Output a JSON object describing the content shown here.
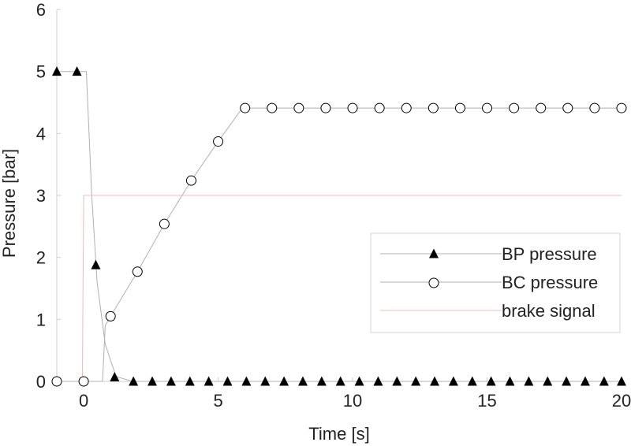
{
  "chart_data": {
    "type": "line",
    "title": "",
    "xlabel": "Time [s]",
    "ylabel": "Pressure [bar]",
    "xlim": [
      -1,
      20
    ],
    "ylim": [
      0,
      6
    ],
    "x_ticks": [
      0,
      5,
      10,
      15,
      20
    ],
    "y_ticks": [
      0,
      1,
      2,
      3,
      4,
      5,
      6
    ],
    "grid": false,
    "legend_position": "center-right",
    "series": [
      {
        "name": "BP pressure",
        "marker": "filled-triangle",
        "color": "#000000",
        "line_color": "#b0b0b0",
        "line": [
          [
            -1,
            5
          ],
          [
            0.1,
            5
          ],
          [
            0.3,
            3.0
          ],
          [
            0.5,
            1.6
          ],
          [
            0.8,
            0.6
          ],
          [
            1.2,
            0.08
          ],
          [
            1.8,
            0.0
          ],
          [
            20,
            0.0
          ]
        ],
        "points": [
          [
            -1,
            5
          ],
          [
            -0.25,
            5
          ],
          [
            0.45,
            1.88
          ],
          [
            1.15,
            0.07
          ],
          [
            1.85,
            0
          ],
          [
            2.55,
            0
          ],
          [
            3.25,
            0
          ],
          [
            3.95,
            0
          ],
          [
            4.65,
            0
          ],
          [
            5.35,
            0
          ],
          [
            6.05,
            0
          ],
          [
            6.75,
            0
          ],
          [
            7.45,
            0
          ],
          [
            8.15,
            0
          ],
          [
            8.85,
            0
          ],
          [
            9.55,
            0
          ],
          [
            10.25,
            0
          ],
          [
            10.95,
            0
          ],
          [
            11.65,
            0
          ],
          [
            12.35,
            0
          ],
          [
            13.05,
            0
          ],
          [
            13.75,
            0
          ],
          [
            14.45,
            0
          ],
          [
            15.15,
            0
          ],
          [
            15.85,
            0
          ],
          [
            16.55,
            0
          ],
          [
            17.25,
            0
          ],
          [
            17.95,
            0
          ],
          [
            18.65,
            0
          ],
          [
            19.35,
            0
          ],
          [
            20,
            0
          ]
        ]
      },
      {
        "name": "BC pressure",
        "marker": "open-circle",
        "color": "#000000",
        "line_color": "#b0b0b0",
        "line": [
          [
            -1,
            0
          ],
          [
            0.7,
            0
          ],
          [
            0.8,
            0.9
          ],
          [
            1.0,
            1.05
          ],
          [
            2.0,
            1.77
          ],
          [
            3.0,
            2.54
          ],
          [
            4.0,
            3.24
          ],
          [
            5.0,
            3.87
          ],
          [
            5.9,
            4.41
          ],
          [
            20,
            4.41
          ]
        ],
        "points": [
          [
            -1,
            0
          ],
          [
            0,
            0
          ],
          [
            1.0,
            1.05
          ],
          [
            2.0,
            1.77
          ],
          [
            3.0,
            2.54
          ],
          [
            4.0,
            3.24
          ],
          [
            5.0,
            3.87
          ],
          [
            6.0,
            4.41
          ],
          [
            7.0,
            4.41
          ],
          [
            8.0,
            4.41
          ],
          [
            9.0,
            4.41
          ],
          [
            10.0,
            4.41
          ],
          [
            11.0,
            4.41
          ],
          [
            12.0,
            4.41
          ],
          [
            13.0,
            4.41
          ],
          [
            14.0,
            4.41
          ],
          [
            15.0,
            4.41
          ],
          [
            16.0,
            4.41
          ],
          [
            17.0,
            4.41
          ],
          [
            18.0,
            4.41
          ],
          [
            19.0,
            4.41
          ],
          [
            20.0,
            4.41
          ]
        ]
      },
      {
        "name": "brake signal",
        "marker": "none",
        "color": "#f0b8c0",
        "line_color": "#f0b8c0",
        "line": [
          [
            -0.05,
            0
          ],
          [
            0,
            3
          ],
          [
            20,
            3
          ]
        ],
        "points": []
      }
    ]
  }
}
